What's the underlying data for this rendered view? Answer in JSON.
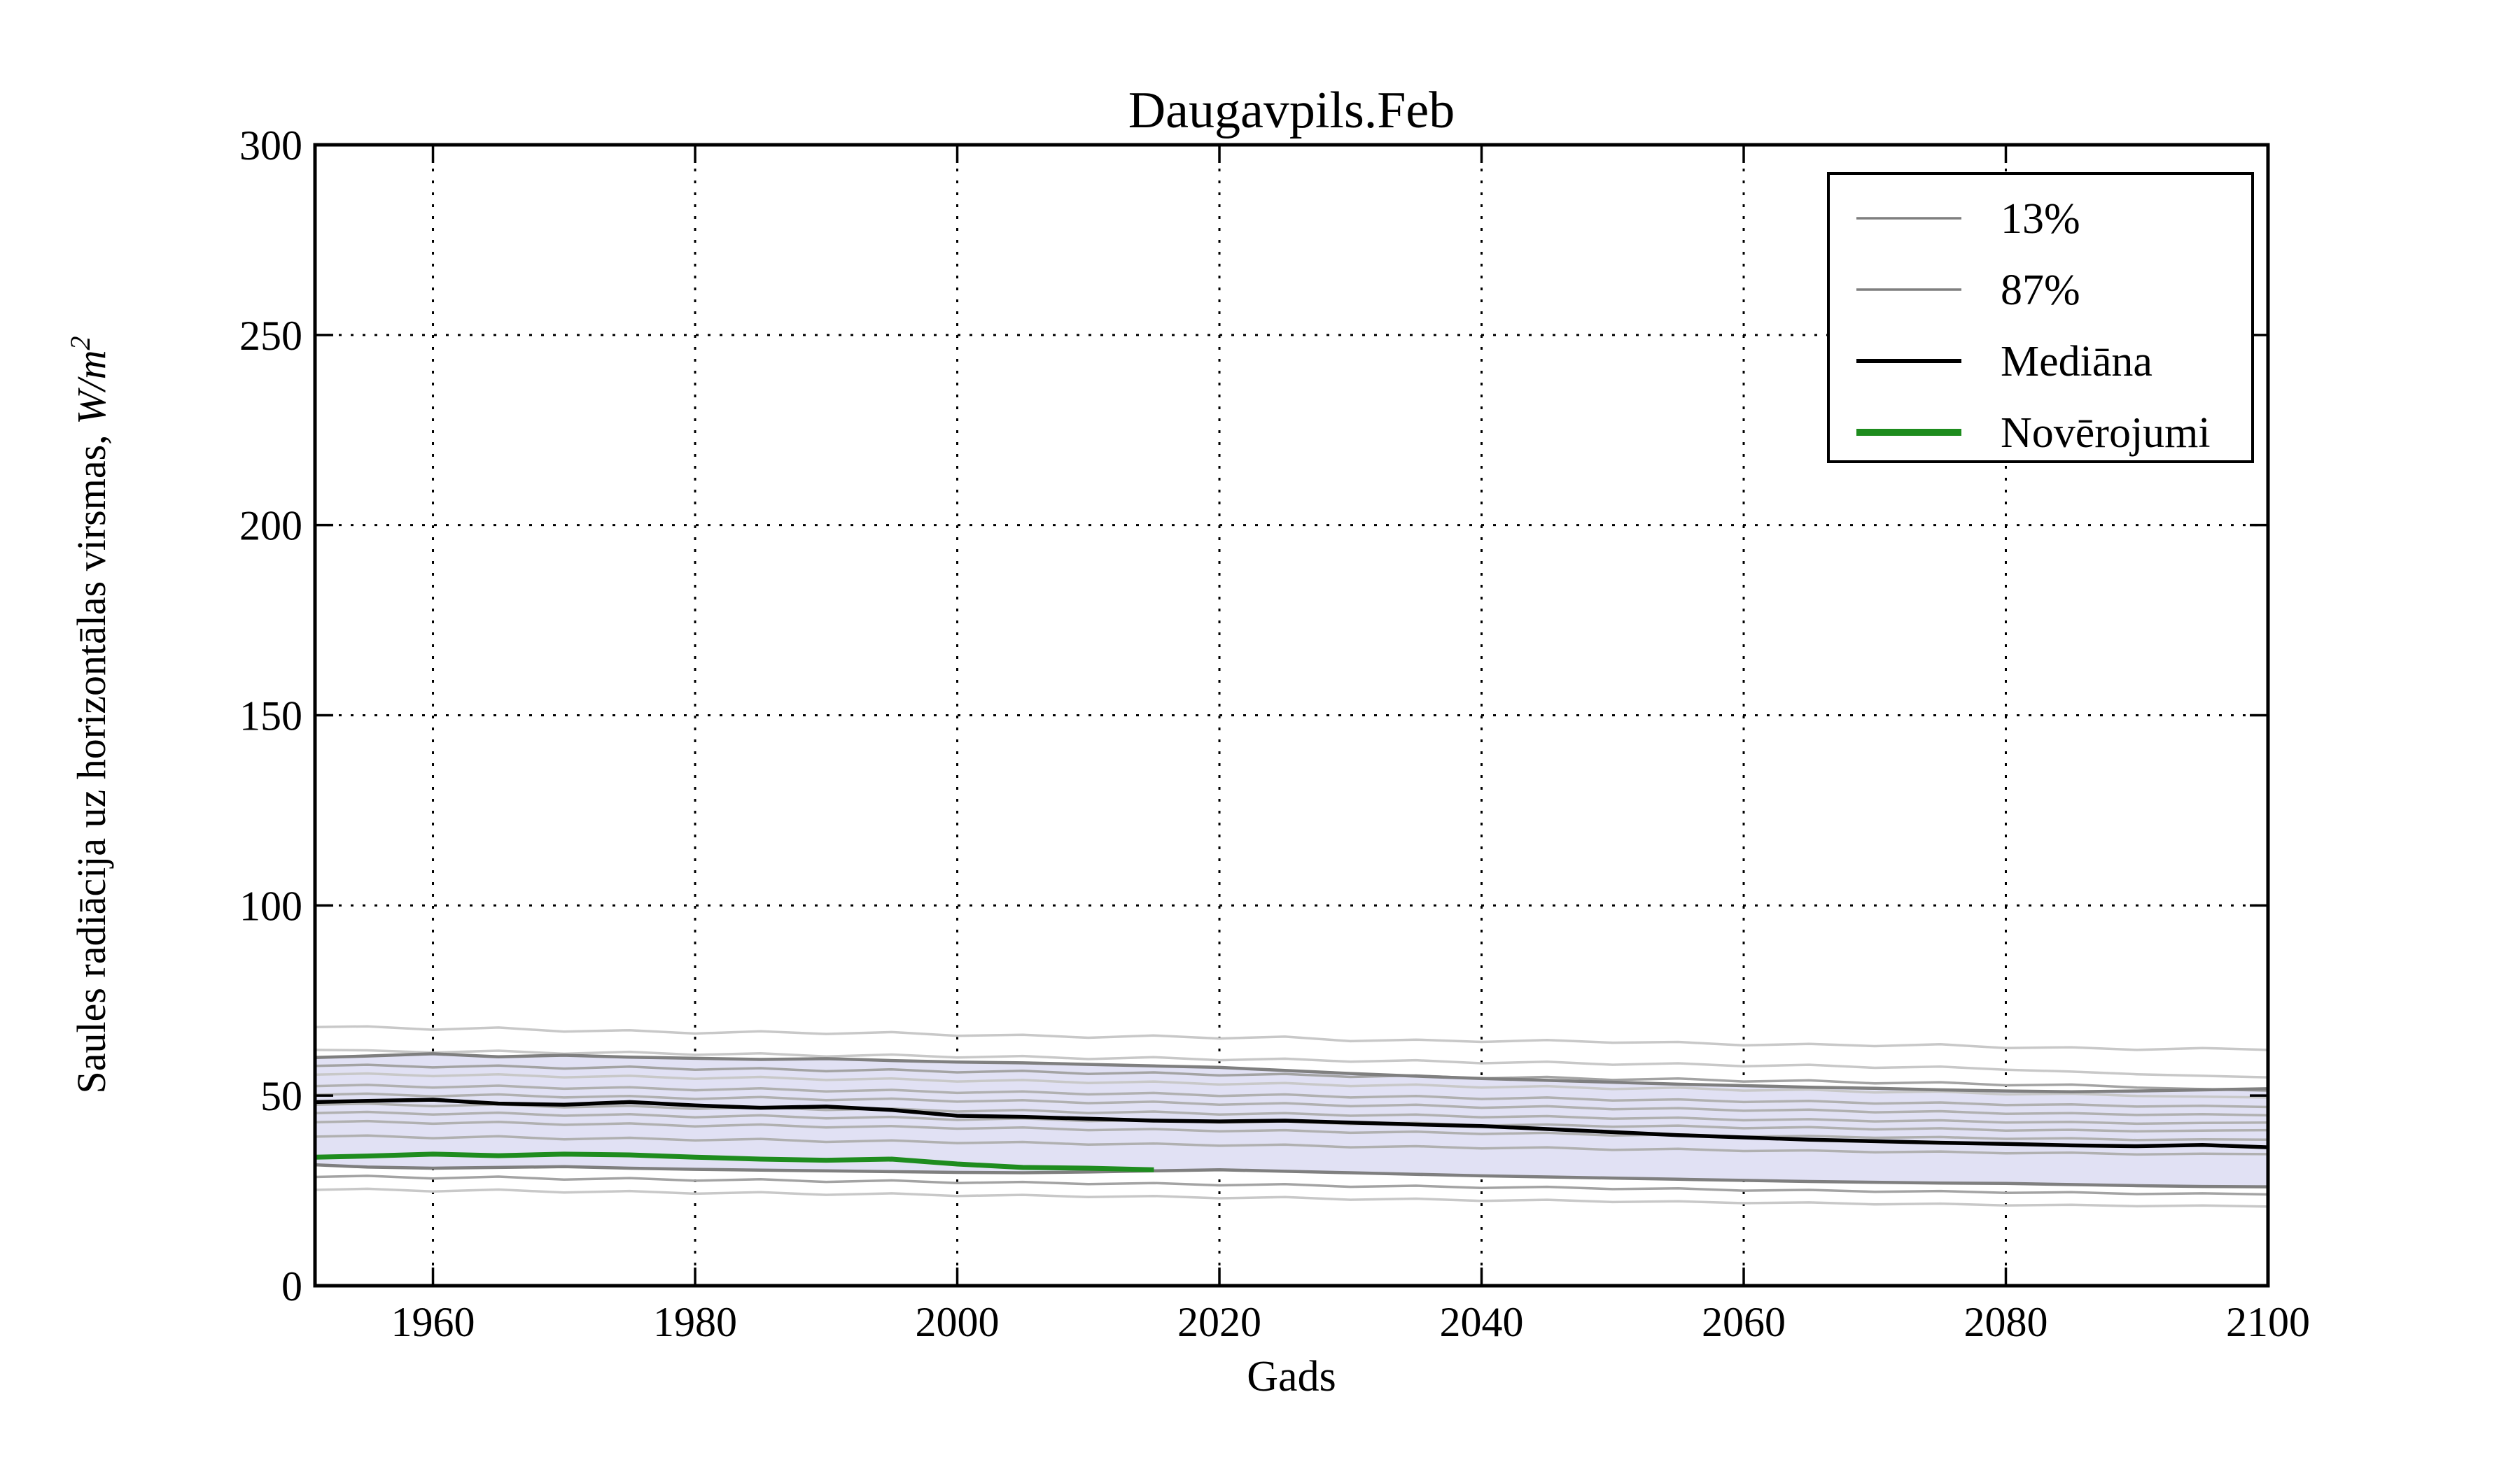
{
  "window": {
    "title": "Daugavpils.Feb"
  },
  "chart_data": {
    "type": "line",
    "title": "Daugavpils.Feb",
    "xlabel": "Gads",
    "ylabel": "Saules radiācija uz horizontālas virsmas, W/m²",
    "ylabel_main": "Saules radiācija uz horizontālas virsmas, ",
    "ylabel_unit": "W/m",
    "ylabel_sup": "2",
    "xlim": [
      1951,
      2100
    ],
    "ylim": [
      0,
      300
    ],
    "xticks": [
      1960,
      1980,
      2000,
      2020,
      2040,
      2060,
      2080,
      2100
    ],
    "yticks": [
      0,
      50,
      100,
      150,
      200,
      250,
      300
    ],
    "grid": "dotted",
    "colors": {
      "median": "#000000",
      "observations": "#1e8c1e",
      "percentile": "#7f7f7f",
      "band_fill": "#e1e1f4",
      "ensemble_light": "#c8c8c8",
      "ensemble_mid": "#b0b0b0",
      "ensemble_dark": "#a3a3a3",
      "axes": "#000000"
    },
    "x": [
      1951,
      1955,
      1960,
      1965,
      1970,
      1975,
      1980,
      1985,
      1990,
      1995,
      2000,
      2005,
      2010,
      2015,
      2020,
      2025,
      2030,
      2035,
      2040,
      2045,
      2050,
      2055,
      2060,
      2065,
      2070,
      2075,
      2080,
      2085,
      2090,
      2095,
      2100
    ],
    "band": {
      "upper_name": "87%",
      "lower_name": "13%",
      "upper": [
        60.0,
        60.4,
        61.0,
        60.2,
        60.6,
        60.1,
        59.8,
        59.5,
        59.7,
        59.2,
        58.8,
        58.6,
        58.2,
        57.8,
        57.4,
        56.6,
        55.8,
        55.1,
        54.5,
        54.0,
        53.5,
        53.0,
        52.6,
        52.2,
        51.9,
        51.5,
        51.2,
        51.0,
        51.2,
        51.5,
        51.8
      ],
      "lower": [
        31.8,
        31.2,
        30.9,
        31.1,
        31.3,
        30.9,
        30.6,
        30.4,
        30.2,
        30.0,
        29.8,
        29.7,
        29.9,
        30.2,
        30.5,
        30.1,
        29.7,
        29.3,
        28.9,
        28.6,
        28.3,
        28.0,
        27.7,
        27.4,
        27.2,
        27.0,
        26.9,
        26.6,
        26.3,
        26.1,
        26.0
      ]
    },
    "series": [
      {
        "name": "Mediāna",
        "role": "median",
        "color": "#000000",
        "linewidth": 5.5,
        "values": [
          48.3,
          48.6,
          48.9,
          47.9,
          47.6,
          48.3,
          47.4,
          46.8,
          47.1,
          46.2,
          44.7,
          44.4,
          43.9,
          43.4,
          43.2,
          43.4,
          42.9,
          42.4,
          42.0,
          41.2,
          40.4,
          39.6,
          39.0,
          38.4,
          38.0,
          37.6,
          37.3,
          36.9,
          36.7,
          37.0,
          36.4
        ]
      },
      {
        "name": "Novērojumi",
        "role": "observations",
        "color": "#1e8c1e",
        "linewidth": 7,
        "x": [
          1951,
          1955,
          1960,
          1965,
          1970,
          1975,
          1980,
          1985,
          1990,
          1995,
          2000,
          2005,
          2010,
          2015
        ],
        "values": [
          33.8,
          34.1,
          34.6,
          34.2,
          34.6,
          34.4,
          33.8,
          33.3,
          33.0,
          33.3,
          32.0,
          31.1,
          30.9,
          30.5
        ]
      }
    ],
    "ensemble": [
      {
        "name": "ensemble-1",
        "color": "#c8c8c8",
        "linewidth": 3.5,
        "values": [
          68.0,
          68.2,
          67.3,
          67.9,
          66.8,
          67.2,
          66.3,
          66.9,
          66.2,
          66.7,
          65.7,
          66.0,
          65.2,
          65.8,
          65.0,
          65.5,
          64.3,
          64.7,
          64.1,
          64.6,
          63.9,
          64.1,
          63.2,
          63.6,
          63.0,
          63.5,
          62.5,
          62.7,
          62.0,
          62.5,
          62.0
        ]
      },
      {
        "name": "ensemble-2",
        "color": "#c8c8c8",
        "linewidth": 3.5,
        "values": [
          62.0,
          61.9,
          61.3,
          61.8,
          61.0,
          61.5,
          60.7,
          61.1,
          60.3,
          60.8,
          60.0,
          60.4,
          59.6,
          60.1,
          59.3,
          59.7,
          58.9,
          59.3,
          58.5,
          58.9,
          58.1,
          58.5,
          57.7,
          58.1,
          57.3,
          57.6,
          56.8,
          56.3,
          55.6,
          55.2,
          54.8
        ]
      },
      {
        "name": "ensemble-3",
        "color": "#a3a3a3",
        "linewidth": 3.5,
        "values": [
          57.8,
          58.1,
          57.4,
          57.9,
          57.1,
          57.6,
          56.8,
          57.2,
          56.4,
          56.9,
          56.1,
          56.5,
          55.7,
          56.1,
          55.3,
          55.7,
          54.9,
          55.3,
          54.5,
          54.9,
          54.1,
          54.5,
          53.7,
          54.0,
          53.2,
          53.5,
          52.7,
          52.9,
          52.1,
          51.7,
          51.3
        ]
      },
      {
        "name": "ensemble-4",
        "color": "#c8c8c8",
        "linewidth": 3.5,
        "values": [
          55.5,
          55.8,
          55.1,
          55.6,
          54.8,
          55.2,
          54.4,
          54.9,
          54.1,
          54.5,
          53.7,
          54.1,
          53.3,
          53.7,
          52.9,
          53.3,
          52.5,
          52.9,
          52.1,
          52.5,
          51.7,
          52.1,
          51.3,
          51.6,
          50.8,
          51.1,
          50.3,
          50.5,
          49.9,
          49.7,
          49.5
        ]
      },
      {
        "name": "ensemble-5",
        "color": "#b0b0b0",
        "linewidth": 3.5,
        "values": [
          52.5,
          52.8,
          52.1,
          52.6,
          51.8,
          52.2,
          51.4,
          51.9,
          51.1,
          51.5,
          50.7,
          51.1,
          50.3,
          50.7,
          49.9,
          50.3,
          49.5,
          49.9,
          49.1,
          49.5,
          48.7,
          49.0,
          48.3,
          48.6,
          47.9,
          48.2,
          47.5,
          47.7,
          47.1,
          47.3,
          47.0
        ]
      },
      {
        "name": "ensemble-6",
        "color": "#b0b0b0",
        "linewidth": 3.5,
        "values": [
          50.2,
          50.5,
          49.8,
          50.3,
          49.5,
          49.9,
          49.1,
          49.6,
          48.8,
          49.2,
          48.4,
          48.8,
          48.0,
          48.4,
          47.6,
          48.0,
          47.2,
          47.6,
          46.8,
          47.2,
          46.4,
          46.7,
          46.0,
          46.3,
          45.6,
          45.9,
          45.2,
          45.4,
          44.9,
          45.1,
          44.8
        ]
      },
      {
        "name": "ensemble-7",
        "color": "#b0b0b0",
        "linewidth": 3.5,
        "values": [
          47.6,
          47.9,
          47.2,
          47.7,
          46.9,
          47.3,
          46.5,
          47.0,
          46.2,
          46.6,
          45.8,
          46.2,
          45.4,
          45.8,
          45.0,
          45.4,
          44.7,
          45.0,
          44.3,
          44.6,
          43.9,
          44.2,
          43.5,
          43.8,
          43.2,
          43.5,
          42.9,
          43.1,
          42.6,
          42.8,
          42.9
        ]
      },
      {
        "name": "ensemble-8",
        "color": "#b0b0b0",
        "linewidth": 3.5,
        "values": [
          45.4,
          45.7,
          45.0,
          45.5,
          44.7,
          45.1,
          44.3,
          44.8,
          44.0,
          44.4,
          43.6,
          44.0,
          43.3,
          43.6,
          42.9,
          43.2,
          42.5,
          42.8,
          42.1,
          42.4,
          41.8,
          42.1,
          41.4,
          41.7,
          41.1,
          41.4,
          40.8,
          41.0,
          40.6,
          40.8,
          40.9
        ]
      },
      {
        "name": "ensemble-9",
        "color": "#b0b0b0",
        "linewidth": 3.5,
        "values": [
          43.0,
          43.3,
          42.6,
          43.1,
          42.3,
          42.7,
          41.9,
          42.4,
          41.6,
          42.0,
          41.3,
          41.6,
          40.9,
          41.2,
          40.6,
          40.9,
          40.2,
          40.5,
          39.9,
          40.2,
          39.5,
          39.8,
          39.2,
          39.4,
          38.9,
          39.1,
          38.6,
          38.8,
          38.3,
          38.5,
          38.4
        ]
      },
      {
        "name": "ensemble-10",
        "color": "#b0b0b0",
        "linewidth": 3.5,
        "values": [
          39.2,
          39.5,
          38.8,
          39.3,
          38.5,
          38.9,
          38.2,
          38.6,
          37.8,
          38.2,
          37.5,
          37.8,
          37.1,
          37.4,
          36.8,
          37.1,
          36.4,
          36.7,
          36.1,
          36.4,
          35.7,
          36.0,
          35.4,
          35.6,
          35.1,
          35.3,
          34.8,
          35.0,
          34.5,
          34.7,
          34.6
        ]
      },
      {
        "name": "ensemble-11",
        "color": "#a3a3a3",
        "linewidth": 3.5,
        "values": [
          28.6,
          28.9,
          28.2,
          28.7,
          27.9,
          28.3,
          27.6,
          28.0,
          27.3,
          27.7,
          27.0,
          27.3,
          26.7,
          27.0,
          26.4,
          26.7,
          26.0,
          26.3,
          25.7,
          26.0,
          25.4,
          25.6,
          25.0,
          25.2,
          24.7,
          24.9,
          24.4,
          24.6,
          24.1,
          24.3,
          24.0
        ]
      },
      {
        "name": "ensemble-12",
        "color": "#c8c8c8",
        "linewidth": 3.5,
        "values": [
          25.2,
          25.5,
          24.8,
          25.3,
          24.5,
          24.9,
          24.2,
          24.6,
          23.9,
          24.3,
          23.6,
          23.9,
          23.3,
          23.6,
          23.0,
          23.3,
          22.6,
          22.9,
          22.3,
          22.6,
          22.0,
          22.2,
          21.7,
          21.9,
          21.4,
          21.6,
          21.1,
          21.3,
          20.9,
          21.1,
          20.8
        ]
      }
    ],
    "legend": {
      "position": "upper right",
      "entries": [
        {
          "label": "13%",
          "color": "#7f7f7f",
          "linewidth": 3.5
        },
        {
          "label": "87%",
          "color": "#7f7f7f",
          "linewidth": 3.5
        },
        {
          "label": "Mediāna",
          "color": "#000000",
          "linewidth": 6
        },
        {
          "label": "Novērojumi",
          "color": "#1e8c1e",
          "linewidth": 10
        }
      ]
    }
  }
}
